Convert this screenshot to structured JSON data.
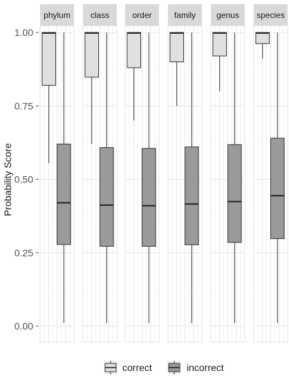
{
  "chart_data": {
    "type": "boxplot",
    "facet_by": "taxonomic rank",
    "ylabel": "Probability Score",
    "xlabel": "",
    "ylim": [
      0,
      1
    ],
    "y_ticks": [
      "0.00",
      "0.25",
      "0.50",
      "0.75",
      "1.00"
    ],
    "grid": true,
    "legend_position": "bottom",
    "legend": [
      {
        "name": "correct",
        "color": "#e0e0e0"
      },
      {
        "name": "incorrect",
        "color": "#9a9a9a"
      }
    ],
    "panels": [
      {
        "label": "phylum",
        "correct": {
          "min": 0.555,
          "q1": 0.82,
          "median": 0.998,
          "q3": 1.0,
          "max": 1.0
        },
        "incorrect": {
          "min": 0.01,
          "q1": 0.278,
          "median": 0.42,
          "q3": 0.62,
          "max": 1.0
        }
      },
      {
        "label": "class",
        "correct": {
          "min": 0.62,
          "q1": 0.848,
          "median": 0.998,
          "q3": 1.0,
          "max": 1.0
        },
        "incorrect": {
          "min": 0.01,
          "q1": 0.272,
          "median": 0.412,
          "q3": 0.608,
          "max": 1.0
        }
      },
      {
        "label": "order",
        "correct": {
          "min": 0.7,
          "q1": 0.88,
          "median": 0.998,
          "q3": 1.0,
          "max": 1.0
        },
        "incorrect": {
          "min": 0.01,
          "q1": 0.272,
          "median": 0.41,
          "q3": 0.605,
          "max": 1.0
        }
      },
      {
        "label": "family",
        "correct": {
          "min": 0.75,
          "q1": 0.9,
          "median": 0.998,
          "q3": 1.0,
          "max": 1.0
        },
        "incorrect": {
          "min": 0.01,
          "q1": 0.277,
          "median": 0.416,
          "q3": 0.61,
          "max": 1.0
        }
      },
      {
        "label": "genus",
        "correct": {
          "min": 0.8,
          "q1": 0.92,
          "median": 0.998,
          "q3": 1.0,
          "max": 1.0
        },
        "incorrect": {
          "min": 0.01,
          "q1": 0.285,
          "median": 0.424,
          "q3": 0.618,
          "max": 1.0
        }
      },
      {
        "label": "species",
        "correct": {
          "min": 0.91,
          "q1": 0.962,
          "median": 0.998,
          "q3": 1.0,
          "max": 1.0
        },
        "incorrect": {
          "min": 0.01,
          "q1": 0.298,
          "median": 0.444,
          "q3": 0.64,
          "max": 1.0
        }
      }
    ]
  }
}
